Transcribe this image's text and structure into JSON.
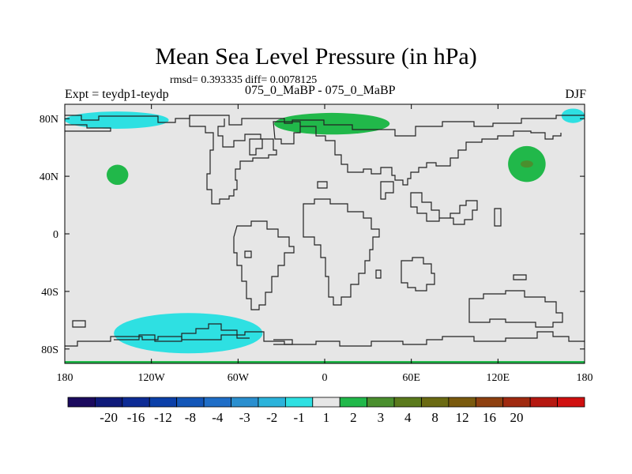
{
  "chart_data": {
    "type": "heatmap",
    "title": "Mean Sea Level Pressure (in hPa)",
    "subtitle": "rmsd= 0.393335 diff= 0.0078125",
    "left_label": "Expt = teydp1-teydp",
    "center_label": "075_0_MaBP - 075_0_MaBP",
    "right_label": "DJF",
    "projection": "cylindrical equidistant",
    "xlim": [
      -180,
      180
    ],
    "ylim": [
      -90,
      90
    ],
    "x_ticks": [
      {
        "value": -180,
        "label": "180"
      },
      {
        "value": -120,
        "label": "120W"
      },
      {
        "value": -60,
        "label": "60W"
      },
      {
        "value": 0,
        "label": "0"
      },
      {
        "value": 60,
        "label": "60E"
      },
      {
        "value": 120,
        "label": "120E"
      },
      {
        "value": 180,
        "label": "180"
      }
    ],
    "y_ticks": [
      {
        "value": 80,
        "label": "80N"
      },
      {
        "value": 40,
        "label": "40N"
      },
      {
        "value": 0,
        "label": "0"
      },
      {
        "value": -40,
        "label": "40S"
      },
      {
        "value": -80,
        "label": "80S"
      }
    ],
    "colorbar": {
      "colors": [
        "#1b0a5e",
        "#0f1a7a",
        "#0d2b95",
        "#0b3fa8",
        "#1356b8",
        "#1f6ec7",
        "#2a8fcf",
        "#2bb3db",
        "#2ee0e2",
        "#e6e6e6",
        "#21b84a",
        "#4a8f2e",
        "#5a7a1c",
        "#6b6a12",
        "#7a5a0e",
        "#8e4010",
        "#a02a10",
        "#b51810",
        "#d01010"
      ],
      "labels": [
        "-20",
        "-16",
        "-12",
        "-8",
        "-4",
        "-3",
        "-2",
        "-1",
        "1",
        "2",
        "3",
        "4",
        "8",
        "12",
        "16",
        "20"
      ]
    },
    "anomalies": [
      {
        "region": "arctic north pacific",
        "lon": [
          -180,
          -108
        ],
        "lat": [
          73,
          85
        ],
        "sign": "negative",
        "range": "-2 to -1"
      },
      {
        "region": "north pacific",
        "lon": [
          -151,
          -136
        ],
        "lat": [
          34,
          48
        ],
        "sign": "positive",
        "range": "1 to 2"
      },
      {
        "region": "siberian arctic",
        "lon": [
          -35,
          45
        ],
        "lat": [
          69,
          84
        ],
        "sign": "positive",
        "range": "1 to 2"
      },
      {
        "region": "north-west pacific",
        "lon": [
          127,
          153
        ],
        "lat": [
          36,
          61
        ],
        "sign": "positive",
        "range": "1 to 3"
      },
      {
        "region": "arctic east",
        "lon": [
          164,
          180
        ],
        "lat": [
          77,
          87
        ],
        "sign": "negative",
        "range": "-2 to -1"
      },
      {
        "region": "southern ocean",
        "lon": [
          -146,
          -43
        ],
        "lat": [
          -83,
          -55
        ],
        "sign": "negative",
        "range": "-2 to -1"
      }
    ]
  }
}
